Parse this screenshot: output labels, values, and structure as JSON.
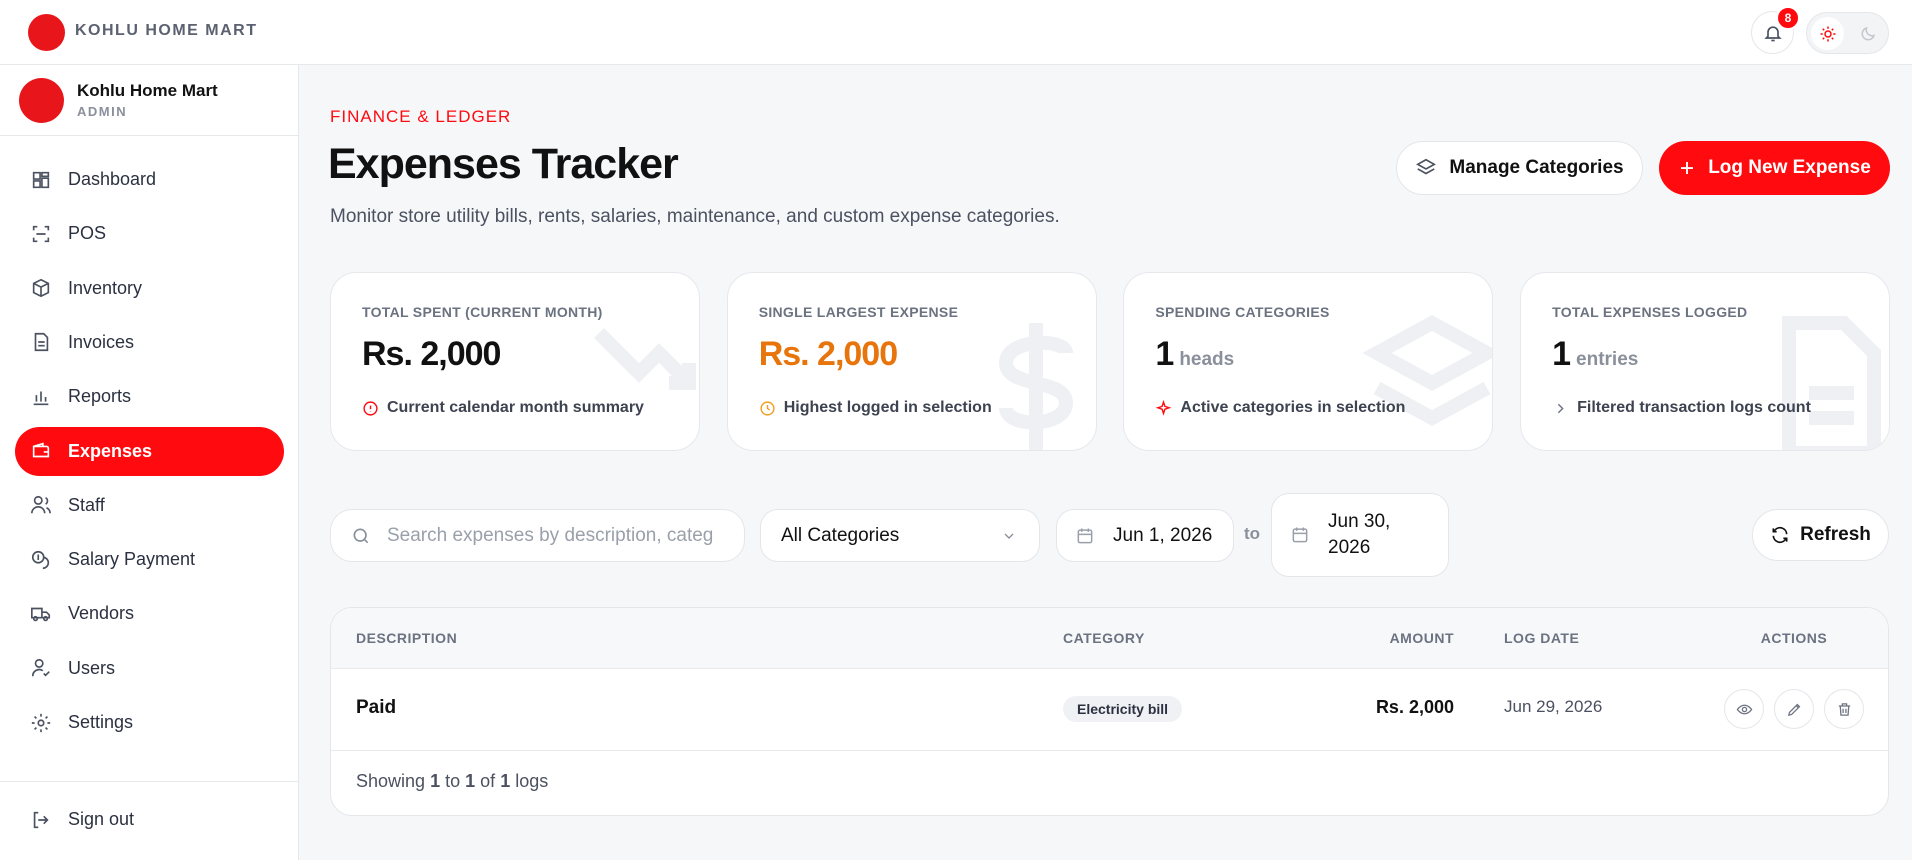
{
  "brand": "KOHLU HOME MART",
  "notifications": 8,
  "profile": {
    "name": "Kohlu Home Mart",
    "role": "ADMIN"
  },
  "nav": [
    {
      "label": "Dashboard",
      "active": false
    },
    {
      "label": "POS",
      "active": false
    },
    {
      "label": "Inventory",
      "active": false
    },
    {
      "label": "Invoices",
      "active": false
    },
    {
      "label": "Reports",
      "active": false
    },
    {
      "label": "Expenses",
      "active": true
    },
    {
      "label": "Staff",
      "active": false
    },
    {
      "label": "Salary Payment",
      "active": false
    },
    {
      "label": "Vendors",
      "active": false
    },
    {
      "label": "Users",
      "active": false
    },
    {
      "label": "Settings",
      "active": false
    }
  ],
  "sign_out": "Sign out",
  "header": {
    "eyebrow": "FINANCE & LEDGER",
    "title": "Expenses Tracker",
    "subtitle": "Monitor store utility bills, rents, salaries, maintenance, and custom expense categories.",
    "manage_button": "Manage Categories",
    "primary_button": "Log New Expense"
  },
  "cards": [
    {
      "label": "TOTAL SPENT (CURRENT MONTH)",
      "value": "Rs. 2,000",
      "note": "Current calendar month summary",
      "color": "#111111"
    },
    {
      "label": "SINGLE LARGEST EXPENSE",
      "value": "Rs. 2,000",
      "note": "Highest logged in selection",
      "color": "#e8740c"
    },
    {
      "label": "SPENDING CATEGORIES",
      "value": "1",
      "unit": "heads",
      "note": "Active categories in selection",
      "color": "#111111"
    },
    {
      "label": "TOTAL EXPENSES LOGGED",
      "value": "1",
      "unit": "entries",
      "note": "Filtered transaction logs count",
      "color": "#111111"
    }
  ],
  "filters": {
    "search_placeholder": "Search expenses by description, categ",
    "category": "All Categories",
    "date_from": "Jun 1, 2026",
    "to": "to",
    "date_to": "Jun 30, 2026",
    "refresh": "Refresh"
  },
  "table": {
    "columns": [
      "DESCRIPTION",
      "CATEGORY",
      "AMOUNT",
      "LOG DATE",
      "ACTIONS"
    ],
    "rows": [
      {
        "description": "Paid",
        "category": "Electricity bill",
        "amount": "Rs. 2,000",
        "date": "Jun 29, 2026"
      }
    ],
    "footer": {
      "prefix": "Showing",
      "from": "1",
      "to_word": "to",
      "to": "1",
      "of_word": "of",
      "total": "1",
      "suffix": "logs"
    }
  }
}
